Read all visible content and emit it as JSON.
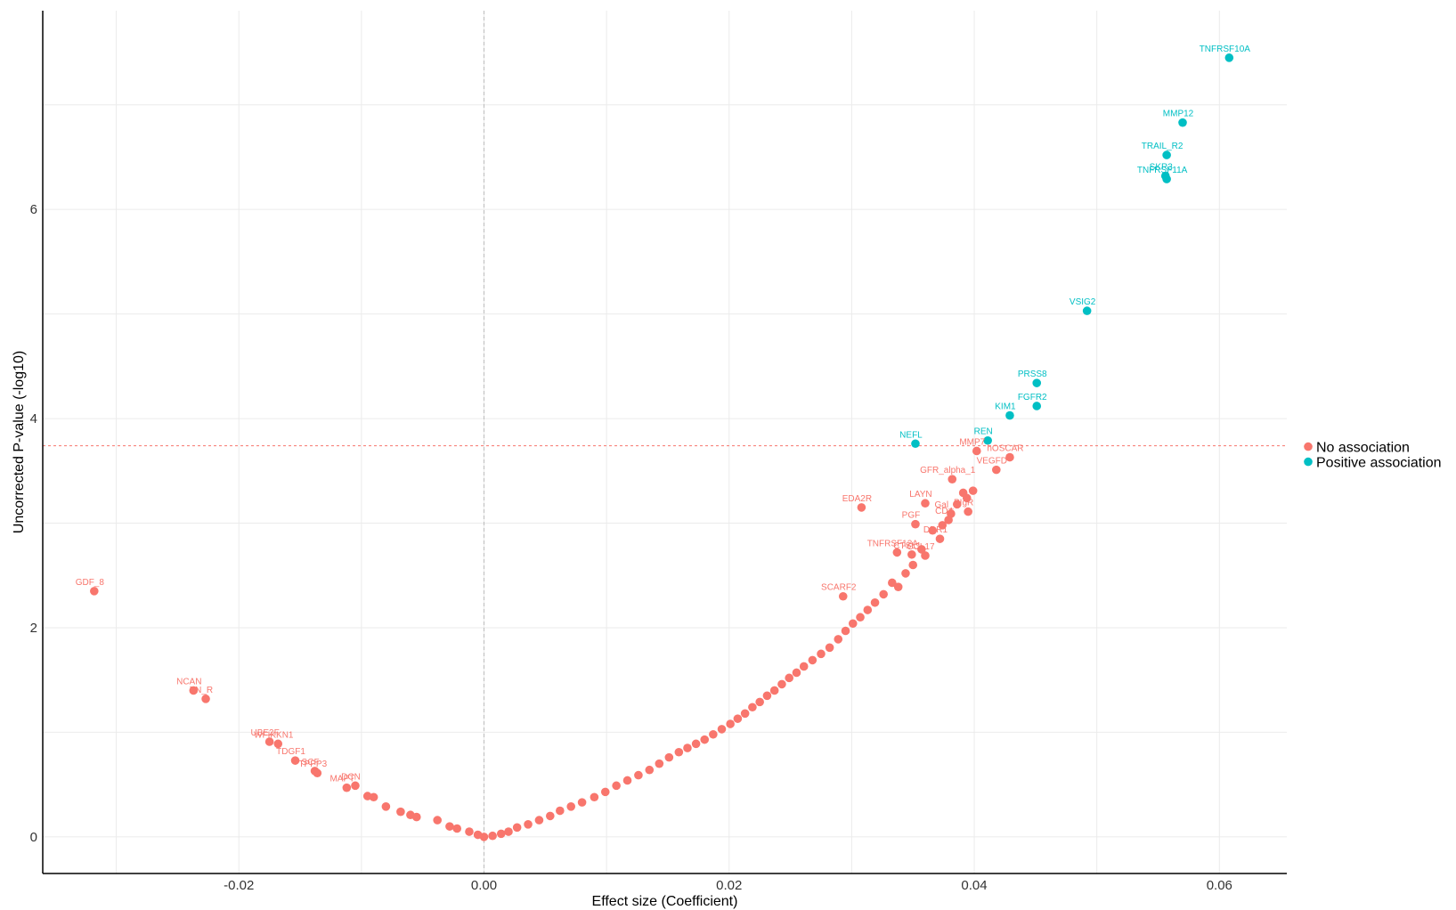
{
  "colors": {
    "no_association": "#F8766D",
    "positive_association": "#00BFC4",
    "threshold_line": "#F8766D",
    "zero_line": "#BBBBBB",
    "grid": "#EBEBEB",
    "axis": "#000000"
  },
  "chart_data": {
    "type": "scatter",
    "title": "",
    "xlabel": "Effect size (Coefficient)",
    "ylabel": "Uncorrected P-value (-log10)",
    "xlim": [
      -0.036,
      0.0655
    ],
    "ylim": [
      -0.35,
      7.9
    ],
    "x_ticks": [
      -0.02,
      0.0,
      0.02,
      0.04,
      0.06
    ],
    "x_tick_labels": [
      "-0.02",
      "0.00",
      "0.02",
      "0.04",
      "0.06"
    ],
    "y_ticks": [
      0,
      2,
      4,
      6
    ],
    "y_tick_labels": [
      "0",
      "2",
      "4",
      "6"
    ],
    "grid": true,
    "threshold_y": 3.74,
    "zero_x": 0.0,
    "legend": {
      "position": "right",
      "entries": [
        {
          "label": "No association",
          "color_key": "no_association"
        },
        {
          "label": "Positive association",
          "color_key": "positive_association"
        }
      ]
    },
    "series": [
      {
        "name": "Positive association",
        "color_key": "positive_association",
        "points": [
          {
            "x": 0.0608,
            "y": 7.45,
            "label": "TNFRSF10A"
          },
          {
            "x": 0.057,
            "y": 6.83,
            "label": "MMP12"
          },
          {
            "x": 0.0557,
            "y": 6.52,
            "label": "TRAIL_R2"
          },
          {
            "x": 0.0556,
            "y": 6.32,
            "label": "SKR3"
          },
          {
            "x": 0.0557,
            "y": 6.29,
            "label": "TNFRSF11A"
          },
          {
            "x": 0.0492,
            "y": 5.03,
            "label": "VSIG2"
          },
          {
            "x": 0.0451,
            "y": 4.34,
            "label": "PRSS8"
          },
          {
            "x": 0.0451,
            "y": 4.12,
            "label": "FGFR2"
          },
          {
            "x": 0.0429,
            "y": 4.03,
            "label": "KIM1"
          },
          {
            "x": 0.0411,
            "y": 3.79,
            "label": "REN"
          },
          {
            "x": 0.0352,
            "y": 3.76,
            "label": "NEFL"
          }
        ]
      },
      {
        "name": "No association",
        "color_key": "no_association",
        "points": [
          {
            "x": 0.0429,
            "y": 3.63,
            "label": "hOSCAR"
          },
          {
            "x": 0.0402,
            "y": 3.69,
            "label": "MMP7"
          },
          {
            "x": 0.0418,
            "y": 3.51,
            "label": "VEGFD"
          },
          {
            "x": 0.0382,
            "y": 3.42,
            "label": "GFR_alpha_1"
          },
          {
            "x": 0.036,
            "y": 3.19,
            "label": "LAYN"
          },
          {
            "x": 0.0308,
            "y": 3.15,
            "label": "EDA2R"
          },
          {
            "x": 0.0381,
            "y": 3.09,
            "label": "Gal_9"
          },
          {
            "x": 0.0395,
            "y": 3.11,
            "label": "PIgR"
          },
          {
            "x": 0.0352,
            "y": 2.99,
            "label": "PGF"
          },
          {
            "x": 0.0379,
            "y": 3.03,
            "label": "CD4"
          },
          {
            "x": 0.0372,
            "y": 2.85,
            "label": "DDR1"
          },
          {
            "x": 0.0337,
            "y": 2.72,
            "label": "TNFRSF12A"
          },
          {
            "x": 0.0349,
            "y": 2.7,
            "label": "CTSL1"
          },
          {
            "x": 0.036,
            "y": 2.69,
            "label": "CCL17"
          },
          {
            "x": 0.0293,
            "y": 2.3,
            "label": "SCARF2"
          },
          {
            "x": -0.0318,
            "y": 2.35,
            "label": "GDF_8"
          },
          {
            "x": -0.0237,
            "y": 1.4,
            "label": "NCAN"
          },
          {
            "x": -0.0227,
            "y": 1.32,
            "label": "TN_R"
          },
          {
            "x": -0.0175,
            "y": 0.91,
            "label": "UBE2F"
          },
          {
            "x": -0.0168,
            "y": 0.89,
            "label": "WFIKKN1"
          },
          {
            "x": -0.0154,
            "y": 0.73,
            "label": "TDGF1"
          },
          {
            "x": -0.0138,
            "y": 0.63,
            "label": "SCF"
          },
          {
            "x": -0.0136,
            "y": 0.61,
            "label": "TPPP3"
          },
          {
            "x": -0.0105,
            "y": 0.49,
            "label": "DCN"
          },
          {
            "x": -0.0112,
            "y": 0.47,
            "label": "MAPT"
          },
          {
            "x": -0.0095,
            "y": 0.39,
            "label": ""
          },
          {
            "x": -0.009,
            "y": 0.38,
            "label": ""
          },
          {
            "x": -0.008,
            "y": 0.29,
            "label": ""
          },
          {
            "x": -0.0068,
            "y": 0.24,
            "label": ""
          },
          {
            "x": -0.006,
            "y": 0.21,
            "label": ""
          },
          {
            "x": -0.0055,
            "y": 0.19,
            "label": ""
          },
          {
            "x": -0.0038,
            "y": 0.16,
            "label": ""
          },
          {
            "x": -0.0028,
            "y": 0.1,
            "label": ""
          },
          {
            "x": -0.0022,
            "y": 0.08,
            "label": ""
          },
          {
            "x": -0.0012,
            "y": 0.05,
            "label": ""
          },
          {
            "x": -0.0005,
            "y": 0.02,
            "label": ""
          },
          {
            "x": 0.0,
            "y": 0.0,
            "label": ""
          },
          {
            "x": 0.0007,
            "y": 0.01,
            "label": ""
          },
          {
            "x": 0.0014,
            "y": 0.03,
            "label": ""
          },
          {
            "x": 0.002,
            "y": 0.05,
            "label": ""
          },
          {
            "x": 0.0027,
            "y": 0.09,
            "label": ""
          },
          {
            "x": 0.0036,
            "y": 0.12,
            "label": ""
          },
          {
            "x": 0.0045,
            "y": 0.16,
            "label": ""
          },
          {
            "x": 0.0054,
            "y": 0.2,
            "label": ""
          },
          {
            "x": 0.0062,
            "y": 0.25,
            "label": ""
          },
          {
            "x": 0.0071,
            "y": 0.29,
            "label": ""
          },
          {
            "x": 0.008,
            "y": 0.33,
            "label": ""
          },
          {
            "x": 0.009,
            "y": 0.38,
            "label": ""
          },
          {
            "x": 0.0099,
            "y": 0.43,
            "label": ""
          },
          {
            "x": 0.0108,
            "y": 0.49,
            "label": ""
          },
          {
            "x": 0.0117,
            "y": 0.54,
            "label": ""
          },
          {
            "x": 0.0126,
            "y": 0.59,
            "label": ""
          },
          {
            "x": 0.0135,
            "y": 0.64,
            "label": ""
          },
          {
            "x": 0.0143,
            "y": 0.7,
            "label": ""
          },
          {
            "x": 0.0151,
            "y": 0.76,
            "label": ""
          },
          {
            "x": 0.0159,
            "y": 0.81,
            "label": ""
          },
          {
            "x": 0.0166,
            "y": 0.85,
            "label": ""
          },
          {
            "x": 0.0173,
            "y": 0.89,
            "label": ""
          },
          {
            "x": 0.018,
            "y": 0.93,
            "label": ""
          },
          {
            "x": 0.0187,
            "y": 0.98,
            "label": ""
          },
          {
            "x": 0.0194,
            "y": 1.03,
            "label": ""
          },
          {
            "x": 0.0201,
            "y": 1.08,
            "label": ""
          },
          {
            "x": 0.0207,
            "y": 1.13,
            "label": ""
          },
          {
            "x": 0.0213,
            "y": 1.18,
            "label": ""
          },
          {
            "x": 0.0219,
            "y": 1.24,
            "label": ""
          },
          {
            "x": 0.0225,
            "y": 1.29,
            "label": ""
          },
          {
            "x": 0.0231,
            "y": 1.35,
            "label": ""
          },
          {
            "x": 0.0237,
            "y": 1.4,
            "label": ""
          },
          {
            "x": 0.0243,
            "y": 1.46,
            "label": ""
          },
          {
            "x": 0.0249,
            "y": 1.52,
            "label": ""
          },
          {
            "x": 0.0255,
            "y": 1.57,
            "label": ""
          },
          {
            "x": 0.0261,
            "y": 1.63,
            "label": ""
          },
          {
            "x": 0.0268,
            "y": 1.69,
            "label": ""
          },
          {
            "x": 0.0275,
            "y": 1.75,
            "label": ""
          },
          {
            "x": 0.0282,
            "y": 1.81,
            "label": ""
          },
          {
            "x": 0.0289,
            "y": 1.89,
            "label": ""
          },
          {
            "x": 0.0295,
            "y": 1.97,
            "label": ""
          },
          {
            "x": 0.0301,
            "y": 2.04,
            "label": ""
          },
          {
            "x": 0.0307,
            "y": 2.1,
            "label": ""
          },
          {
            "x": 0.0313,
            "y": 2.17,
            "label": ""
          },
          {
            "x": 0.0319,
            "y": 2.24,
            "label": ""
          },
          {
            "x": 0.0326,
            "y": 2.32,
            "label": ""
          },
          {
            "x": 0.0333,
            "y": 2.43,
            "label": ""
          },
          {
            "x": 0.0338,
            "y": 2.39,
            "label": ""
          },
          {
            "x": 0.0344,
            "y": 2.52,
            "label": ""
          },
          {
            "x": 0.035,
            "y": 2.6,
            "label": ""
          },
          {
            "x": 0.0357,
            "y": 2.75,
            "label": ""
          },
          {
            "x": 0.0366,
            "y": 2.93,
            "label": ""
          },
          {
            "x": 0.0374,
            "y": 2.98,
            "label": ""
          },
          {
            "x": 0.0386,
            "y": 3.18,
            "label": ""
          },
          {
            "x": 0.0391,
            "y": 3.29,
            "label": ""
          },
          {
            "x": 0.0394,
            "y": 3.24,
            "label": ""
          },
          {
            "x": 0.0399,
            "y": 3.31,
            "label": ""
          }
        ]
      }
    ]
  }
}
